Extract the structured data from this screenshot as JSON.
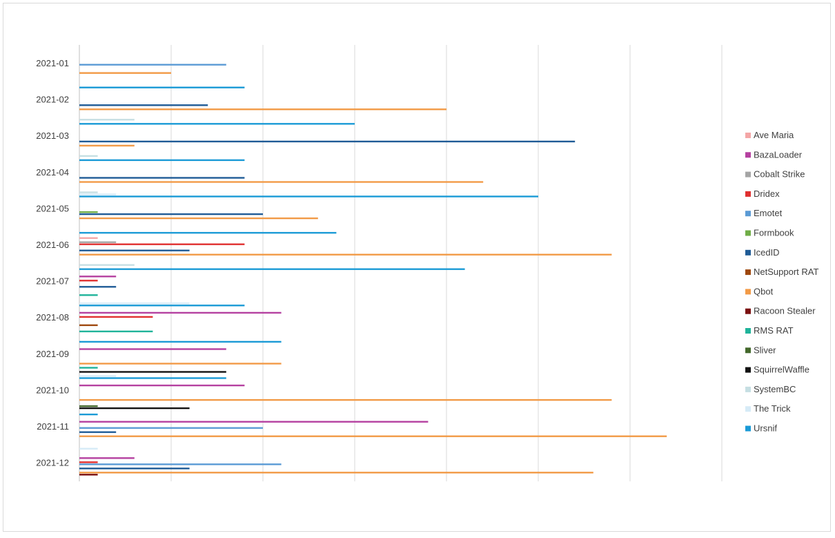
{
  "chart_data": {
    "type": "bar",
    "orientation": "horizontal",
    "title": "",
    "xlabel": "",
    "ylabel": "",
    "xlim": [
      0,
      35
    ],
    "x_gridline_step": 5,
    "x_tick_labels_shown": false,
    "grid": true,
    "legend_position": "right",
    "categories": [
      "2021-01",
      "2021-02",
      "2021-03",
      "2021-04",
      "2021-05",
      "2021-06",
      "2021-07",
      "2021-08",
      "2021-09",
      "2021-10",
      "2021-11",
      "2021-12"
    ],
    "series": [
      {
        "name": "Ave Maria",
        "color": "#f4a6a6",
        "values": [
          0,
          0,
          0,
          0,
          0,
          1,
          0,
          0,
          0,
          0,
          0,
          0
        ]
      },
      {
        "name": "BazaLoader",
        "color": "#b540a0",
        "values": [
          0,
          0,
          0,
          0,
          0,
          0,
          2,
          11,
          8,
          9,
          19,
          3
        ]
      },
      {
        "name": "Cobalt Strike",
        "color": "#a5a5a5",
        "values": [
          0,
          0,
          0,
          0,
          0,
          2,
          0,
          0,
          0,
          0,
          0,
          0
        ]
      },
      {
        "name": "Dridex",
        "color": "#e03030",
        "values": [
          0,
          0,
          0,
          0,
          0,
          9,
          1,
          4,
          0,
          0,
          0,
          1
        ]
      },
      {
        "name": "Emotet",
        "color": "#5b9bd5",
        "values": [
          8,
          0,
          0,
          0,
          0,
          0,
          0,
          0,
          0,
          0,
          10,
          11
        ]
      },
      {
        "name": "Formbook",
        "color": "#70ad47",
        "values": [
          0,
          0,
          0,
          0,
          1,
          0,
          0,
          0,
          0,
          0,
          0,
          0
        ]
      },
      {
        "name": "IcedID",
        "color": "#1f5b96",
        "values": [
          0,
          7,
          27,
          9,
          10,
          6,
          2,
          0,
          0,
          0,
          2,
          6
        ]
      },
      {
        "name": "NetSupport RAT",
        "color": "#9e480e",
        "values": [
          0,
          0,
          0,
          0,
          0,
          0,
          0,
          1,
          0,
          0,
          0,
          0
        ]
      },
      {
        "name": "Qbot",
        "color": "#f29a46",
        "values": [
          5,
          20,
          3,
          22,
          13,
          29,
          0,
          0,
          11,
          29,
          32,
          28
        ]
      },
      {
        "name": "Racoon Stealer",
        "color": "#7b1010",
        "values": [
          0,
          0,
          0,
          0,
          0,
          0,
          0,
          0,
          0,
          0,
          0,
          1
        ]
      },
      {
        "name": "RMS RAT",
        "color": "#1fb39a",
        "values": [
          0,
          0,
          0,
          0,
          0,
          0,
          1,
          4,
          1,
          0,
          0,
          0
        ]
      },
      {
        "name": "Sliver",
        "color": "#43682b",
        "values": [
          0,
          0,
          0,
          0,
          0,
          0,
          0,
          0,
          0,
          1,
          0,
          0
        ]
      },
      {
        "name": "SquirrelWaffle",
        "color": "#111111",
        "values": [
          0,
          0,
          0,
          0,
          0,
          0,
          0,
          0,
          8,
          6,
          0,
          0
        ]
      },
      {
        "name": "SystemBC",
        "color": "#c6dfe3",
        "values": [
          0,
          3,
          1,
          1,
          0,
          3,
          0,
          0,
          0,
          0,
          0,
          0
        ]
      },
      {
        "name": "The Trick",
        "color": "#d6ebf7",
        "values": [
          0,
          0,
          0,
          2,
          0,
          0,
          6,
          0,
          2,
          0,
          1,
          0
        ]
      },
      {
        "name": "Ursnif",
        "color": "#1a9ad6",
        "values": [
          9,
          15,
          9,
          25,
          14,
          21,
          9,
          11,
          8,
          1,
          0,
          0
        ]
      }
    ]
  }
}
